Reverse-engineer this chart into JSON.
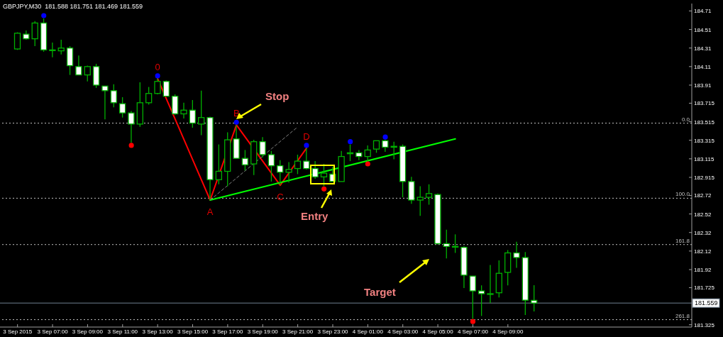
{
  "chart_data": {
    "type": "candlestick",
    "title": "GBPJPY,M30  181.588 181.751 181.469 181.559",
    "color": "#00b000",
    "x": [
      "2015-09-03T05:00",
      "2015-09-03T05:30",
      "2015-09-03T06:00",
      "2015-09-03T06:30",
      "2015-09-03T07:00",
      "2015-09-03T07:30",
      "2015-09-03T08:00",
      "2015-09-03T08:30",
      "2015-09-03T09:00",
      "2015-09-03T09:30",
      "2015-09-03T10:00",
      "2015-09-03T10:30",
      "2015-09-03T11:00",
      "2015-09-03T11:30",
      "2015-09-03T12:00",
      "2015-09-03T12:30",
      "2015-09-03T13:00",
      "2015-09-03T13:30",
      "2015-09-03T14:00",
      "2015-09-03T14:30",
      "2015-09-03T15:00",
      "2015-09-03T15:30",
      "2015-09-03T16:00",
      "2015-09-03T16:30",
      "2015-09-03T17:00",
      "2015-09-03T17:30",
      "2015-09-03T18:00",
      "2015-09-03T18:30",
      "2015-09-03T19:00",
      "2015-09-03T19:30",
      "2015-09-03T20:00",
      "2015-09-03T20:30",
      "2015-09-03T21:00",
      "2015-09-03T21:30",
      "2015-09-03T22:00",
      "2015-09-03T22:30",
      "2015-09-03T23:00",
      "2015-09-03T23:30",
      "2015-09-04T00:00",
      "2015-09-04T00:30",
      "2015-09-04T01:00",
      "2015-09-04T01:30",
      "2015-09-04T02:00",
      "2015-09-04T02:30",
      "2015-09-04T03:00",
      "2015-09-04T03:30",
      "2015-09-04T04:00",
      "2015-09-04T04:30",
      "2015-09-04T05:00",
      "2015-09-04T05:30",
      "2015-09-04T06:00",
      "2015-09-04T06:30",
      "2015-09-04T07:00",
      "2015-09-04T07:30",
      "2015-09-04T08:00",
      "2015-09-04T08:30",
      "2015-09-04T09:00",
      "2015-09-04T09:30",
      "2015-09-04T10:00",
      "2015-09-04T10:30"
    ],
    "ohlc": [
      [
        184.3,
        184.48,
        184.29,
        184.47
      ],
      [
        184.46,
        184.5,
        184.4,
        184.41
      ],
      [
        184.41,
        184.6,
        184.33,
        184.58
      ],
      [
        184.58,
        184.63,
        184.27,
        184.29
      ],
      [
        184.29,
        184.37,
        184.21,
        184.29
      ],
      [
        184.28,
        184.4,
        184.24,
        184.31
      ],
      [
        184.31,
        184.33,
        184.02,
        184.12
      ],
      [
        184.11,
        184.23,
        184.02,
        184.02
      ],
      [
        184.02,
        184.12,
        183.95,
        184.11
      ],
      [
        184.11,
        184.14,
        183.88,
        183.91
      ],
      [
        183.9,
        183.9,
        183.54,
        183.85
      ],
      [
        183.85,
        183.92,
        183.67,
        183.72
      ],
      [
        183.71,
        183.78,
        183.56,
        183.61
      ],
      [
        183.61,
        183.63,
        183.29,
        183.49
      ],
      [
        183.49,
        183.94,
        183.46,
        183.72
      ],
      [
        183.72,
        183.89,
        183.7,
        183.82
      ],
      [
        183.82,
        183.98,
        183.81,
        183.95
      ],
      [
        183.95,
        183.96,
        183.79,
        183.79
      ],
      [
        183.79,
        183.81,
        183.59,
        183.6
      ],
      [
        183.6,
        183.72,
        183.55,
        183.64
      ],
      [
        183.64,
        183.75,
        183.45,
        183.5
      ],
      [
        183.49,
        183.85,
        183.37,
        183.56
      ],
      [
        183.56,
        183.57,
        182.67,
        182.89
      ],
      [
        182.89,
        183.27,
        182.84,
        182.98
      ],
      [
        182.98,
        183.4,
        182.82,
        183.32
      ],
      [
        183.33,
        183.48,
        183.12,
        183.12
      ],
      [
        183.12,
        183.21,
        182.99,
        183.05
      ],
      [
        183.06,
        183.32,
        182.94,
        183.3
      ],
      [
        183.3,
        183.35,
        183.13,
        183.16
      ],
      [
        183.16,
        183.2,
        182.87,
        183.04
      ],
      [
        183.04,
        183.1,
        182.83,
        182.97
      ],
      [
        182.97,
        183.08,
        182.86,
        183.0
      ],
      [
        183.01,
        183.16,
        182.95,
        183.09
      ],
      [
        183.09,
        183.23,
        183.0,
        183.01
      ],
      [
        183.01,
        183.09,
        182.9,
        182.92
      ],
      [
        182.92,
        183.06,
        182.82,
        182.96
      ],
      [
        182.95,
        183.03,
        182.87,
        182.87
      ],
      [
        182.87,
        183.2,
        182.87,
        183.14
      ],
      [
        183.17,
        183.27,
        183.09,
        183.18
      ],
      [
        183.18,
        183.21,
        183.1,
        183.14
      ],
      [
        183.14,
        183.26,
        183.09,
        183.21
      ],
      [
        183.22,
        183.31,
        183.18,
        183.31
      ],
      [
        183.31,
        183.32,
        183.19,
        183.24
      ],
      [
        183.24,
        183.3,
        183.11,
        183.25
      ],
      [
        183.25,
        183.27,
        182.7,
        182.87
      ],
      [
        182.87,
        182.92,
        182.63,
        182.67
      ],
      [
        182.67,
        182.82,
        182.5,
        182.7
      ],
      [
        182.7,
        182.84,
        182.62,
        182.74
      ],
      [
        182.73,
        182.74,
        182.19,
        182.2
      ],
      [
        182.2,
        182.35,
        182.04,
        182.17
      ],
      [
        182.17,
        182.3,
        182.1,
        182.17
      ],
      [
        182.16,
        182.17,
        181.72,
        181.86
      ],
      [
        181.85,
        181.85,
        181.39,
        181.69
      ],
      [
        181.69,
        181.75,
        181.42,
        181.66
      ],
      [
        181.66,
        181.97,
        181.56,
        181.66
      ],
      [
        181.67,
        182.02,
        181.62,
        181.88
      ],
      [
        181.89,
        182.13,
        181.75,
        182.1
      ],
      [
        182.1,
        182.22,
        181.94,
        182.05
      ],
      [
        182.05,
        182.11,
        181.43,
        181.59
      ],
      [
        181.588,
        181.751,
        181.469,
        181.559
      ]
    ],
    "series": [
      {
        "type": "line",
        "color": "#ff0000",
        "line_style": "solid",
        "x": [
          "2015-09-03T13:00",
          "2015-09-03T16:00",
          "2015-09-03T17:30",
          "2015-09-03T20:00",
          "2015-09-03T21:30"
        ],
        "values": [
          183.98,
          182.67,
          183.48,
          182.83,
          183.23
        ]
      },
      {
        "type": "line",
        "color": "#00ff00",
        "line_style": "solid",
        "x": [
          "2015-09-03T16:00",
          "2015-09-04T06:00"
        ],
        "values": [
          182.67,
          183.33
        ]
      },
      {
        "type": "line",
        "color": "#808080",
        "line_style": "dashed",
        "x": [
          "2015-09-03T16:00",
          "2015-09-03T21:00"
        ],
        "values": [
          182.67,
          183.46
        ]
      },
      {
        "type": "scatter",
        "color": "#0000ff",
        "x": [
          "2015-09-03T06:30",
          "2015-09-03T13:00",
          "2015-09-03T17:30",
          "2015-09-03T21:30",
          "2015-09-04T00:00",
          "2015-09-04T02:00"
        ],
        "values": [
          184.66,
          184.01,
          183.51,
          183.26,
          183.3,
          183.35
        ]
      },
      {
        "type": "scatter",
        "color": "#ff0000",
        "x": [
          "2015-09-03T11:30",
          "2015-09-03T22:30",
          "2015-09-04T01:00",
          "2015-09-04T07:00"
        ],
        "values": [
          183.26,
          182.79,
          183.06,
          181.36
        ]
      }
    ],
    "xlim": [
      "2015-09-03T04:00",
      "2015-09-04T19:30"
    ],
    "xticks": [
      {
        "value": "2015-09-03T05:00",
        "label": "3 Sep 2015"
      },
      {
        "value": "2015-09-03T07:00",
        "label": "3 Sep 07:00"
      },
      {
        "value": "2015-09-03T09:00",
        "label": "3 Sep 09:00"
      },
      {
        "value": "2015-09-03T11:00",
        "label": "3 Sep 11:00"
      },
      {
        "value": "2015-09-03T13:00",
        "label": "3 Sep 13:00"
      },
      {
        "value": "2015-09-03T15:00",
        "label": "3 Sep 15:00"
      },
      {
        "value": "2015-09-03T17:00",
        "label": "3 Sep 17:00"
      },
      {
        "value": "2015-09-03T19:00",
        "label": "3 Sep 19:00"
      },
      {
        "value": "2015-09-03T21:00",
        "label": "3 Sep 21:00"
      },
      {
        "value": "2015-09-03T23:00",
        "label": "3 Sep 23:00"
      },
      {
        "value": "2015-09-04T01:00",
        "label": "4 Sep 01:00"
      },
      {
        "value": "2015-09-04T03:00",
        "label": "4 Sep 03:00"
      },
      {
        "value": "2015-09-04T05:00",
        "label": "4 Sep 05:00"
      },
      {
        "value": "2015-09-04T07:00",
        "label": "4 Sep 07:00"
      },
      {
        "value": "2015-09-04T09:00",
        "label": "4 Sep 09:00"
      }
    ],
    "ylim": [
      181.3,
      184.79
    ],
    "yticks": [
      184.71,
      184.51,
      184.31,
      184.11,
      183.91,
      183.715,
      183.515,
      183.315,
      183.115,
      182.915,
      182.72,
      182.52,
      182.32,
      182.12,
      181.92,
      181.725,
      181.325
    ],
    "ref_lines": [
      {
        "axis": "y",
        "value": 183.5,
        "color": "#c0c0c0",
        "line_style": "dotted"
      },
      {
        "axis": "y",
        "value": 182.69,
        "color": "#c0c0c0",
        "line_style": "dotted"
      },
      {
        "axis": "y",
        "value": 182.19,
        "color": "#c0c0c0",
        "line_style": "dotted"
      },
      {
        "axis": "y",
        "value": 181.38,
        "color": "#c0c0c0",
        "line_style": "dotted"
      },
      {
        "axis": "y",
        "value": 181.559,
        "label": "181.559",
        "color": "#708090",
        "line_style": "solid"
      }
    ],
    "annotations": [
      {
        "text": "0",
        "x": "2015-09-03T13:00",
        "y": 183.98
      },
      {
        "text": "A",
        "x": "2015-09-03T16:00",
        "y": 182.67
      },
      {
        "text": "B",
        "x": "2015-09-03T17:30",
        "y": 183.48
      },
      {
        "text": "C",
        "x": "2015-09-03T20:00",
        "y": 182.83
      },
      {
        "text": "D",
        "x": "2015-09-03T21:30",
        "y": 183.23
      },
      {
        "text": "0.0",
        "y": 183.5
      },
      {
        "text": "100.0",
        "y": 182.69
      },
      {
        "text": "161.8",
        "y": 182.19
      },
      {
        "text": "261.8",
        "y": 181.38
      },
      "Stop",
      "Entry",
      "Target"
    ]
  }
}
